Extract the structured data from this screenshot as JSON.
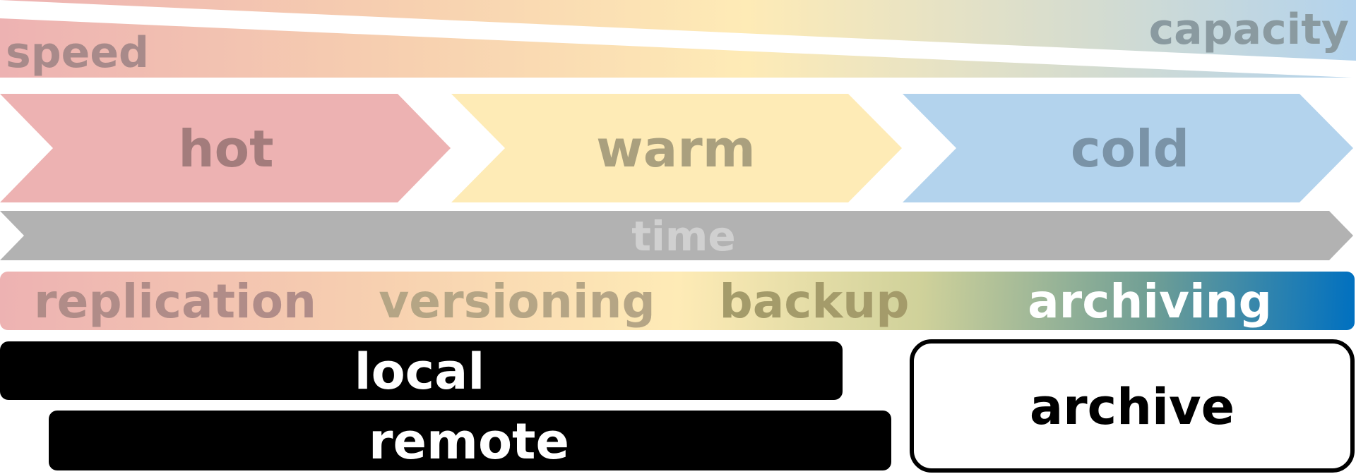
{
  "gradient_labels": {
    "speed": "speed",
    "capacity": "capacity"
  },
  "tiers": [
    {
      "label": "hot",
      "fill": "#edb2b2",
      "text_color": "#a37c7c"
    },
    {
      "label": "warm",
      "fill": "#feebb6",
      "text_color": "#aaa07e"
    },
    {
      "label": "cold",
      "fill": "#b3d3ed",
      "text_color": "#7a93a7"
    }
  ],
  "timeline": {
    "label": "time",
    "fill": "#b2b2b2",
    "text_color": "#d0d0d0"
  },
  "processes": [
    {
      "label": "replication",
      "text_color": "#b08c88"
    },
    {
      "label": "versioning",
      "text_color": "#b5a585"
    },
    {
      "label": "backup",
      "text_color": "#a49b6a"
    },
    {
      "label": "archiving",
      "text_color": "#ffffff"
    }
  ],
  "storage": {
    "local": "local",
    "remote": "remote",
    "archive": "archive"
  },
  "colors": {
    "pink": "#edb2b2",
    "peach": "#f7d0b0",
    "yellow": "#feebb6",
    "olive": "#cfd19a",
    "teal": "#5f9a9a",
    "blue": "#0070c0",
    "light_blue": "#b3d3ed",
    "black": "#000000",
    "white": "#ffffff"
  }
}
